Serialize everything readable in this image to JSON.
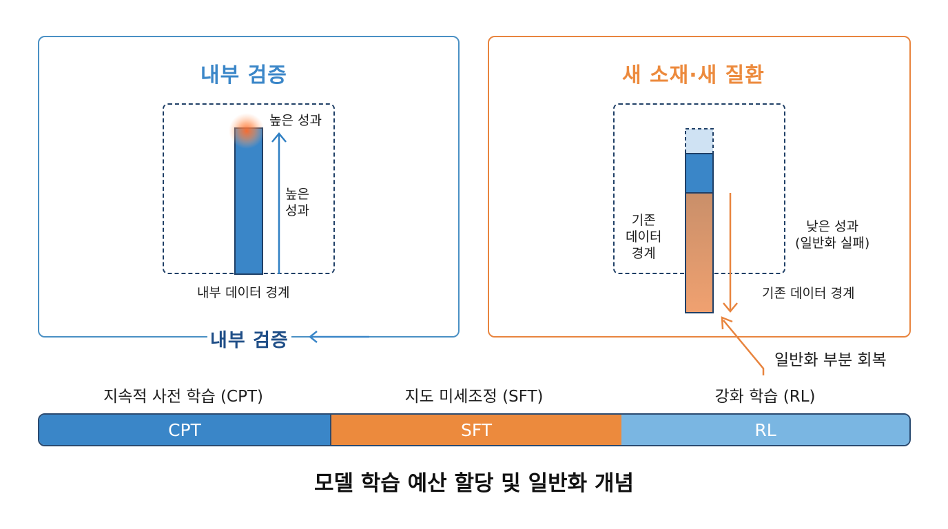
{
  "colors": {
    "blue": "#3a86c8",
    "dark_blue": "#1f4e87",
    "orange": "#ec8a3d",
    "light_blue": "#7ab6e2",
    "navy": "#1f3f66"
  },
  "left_panel": {
    "title": "내부 검증",
    "top_label": "높은 성과",
    "arrow_label": "높은\n성과",
    "boundary_label": "내부 데이터 경계",
    "loop_label": "내부 검증"
  },
  "right_panel": {
    "title": "새 소재·새 질환",
    "existing_boundary_label": "기존\n데이터\n경계",
    "low_performance_label": "낮은 성과\n(일반화 실패)",
    "boundary_label": "기존 데이터 경계",
    "recovery_label": "일반화 부분 회복"
  },
  "stages": [
    {
      "label": "지속적 사전 학습 (CPT)",
      "bar_label": "CPT",
      "color": "#3a86c8"
    },
    {
      "label": "지도 미세조정 (SFT)",
      "bar_label": "SFT",
      "color": "#ec8a3d"
    },
    {
      "label": "강화 학습 (RL)",
      "bar_label": "RL",
      "color": "#7ab6e2"
    }
  ],
  "footer_title": "모델 학습 예산 할당 및 일반화 개념"
}
